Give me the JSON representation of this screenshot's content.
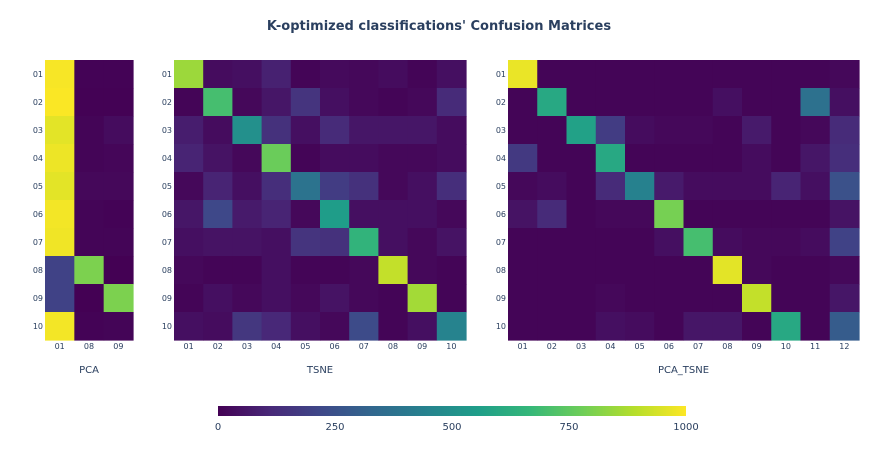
{
  "chart_data": {
    "type": "heatmap",
    "title": "K-optimized classifications' Confusion Matrices",
    "colorscale": "viridis",
    "zrange": [
      0,
      1000
    ],
    "colorbar": {
      "ticks": [
        "0",
        "250",
        "500",
        "750",
        "1000"
      ]
    },
    "panels": [
      {
        "name": "pca",
        "xlabel": "PCA",
        "x": [
          "01",
          "08",
          "09"
        ],
        "y": [
          "01",
          "02",
          "03",
          "04",
          "05",
          "06",
          "07",
          "08",
          "09",
          "10"
        ],
        "z": [
          [
            990,
            5,
            5
          ],
          [
            995,
            3,
            2
          ],
          [
            960,
            10,
            30
          ],
          [
            975,
            10,
            15
          ],
          [
            960,
            20,
            20
          ],
          [
            985,
            10,
            5
          ],
          [
            980,
            10,
            10
          ],
          [
            200,
            800,
            0
          ],
          [
            200,
            0,
            800
          ],
          [
            985,
            5,
            10
          ]
        ]
      },
      {
        "name": "tsne",
        "xlabel": "TSNE",
        "x": [
          "01",
          "02",
          "03",
          "04",
          "05",
          "06",
          "07",
          "08",
          "09",
          "10"
        ],
        "y": [
          "01",
          "02",
          "03",
          "04",
          "05",
          "06",
          "07",
          "08",
          "09",
          "10"
        ],
        "z": [
          [
            850,
            30,
            40,
            90,
            10,
            25,
            20,
            30,
            10,
            40
          ],
          [
            10,
            700,
            20,
            60,
            150,
            40,
            20,
            10,
            20,
            120
          ],
          [
            80,
            30,
            500,
            140,
            40,
            120,
            60,
            60,
            60,
            30
          ],
          [
            100,
            50,
            20,
            770,
            10,
            30,
            30,
            20,
            20,
            30
          ],
          [
            20,
            100,
            40,
            130,
            380,
            180,
            140,
            20,
            40,
            130
          ],
          [
            60,
            220,
            70,
            100,
            20,
            550,
            40,
            40,
            40,
            20
          ],
          [
            40,
            50,
            50,
            40,
            150,
            140,
            650,
            40,
            20,
            50
          ],
          [
            20,
            10,
            10,
            40,
            10,
            10,
            20,
            910,
            20,
            10
          ],
          [
            10,
            40,
            20,
            40,
            20,
            50,
            20,
            10,
            860,
            10
          ],
          [
            40,
            30,
            160,
            110,
            40,
            20,
            230,
            10,
            40,
            450
          ]
        ]
      },
      {
        "name": "pca_tsne",
        "xlabel": "PCA_TSNE",
        "x": [
          "01",
          "02",
          "03",
          "04",
          "05",
          "06",
          "07",
          "08",
          "09",
          "10",
          "11",
          "12"
        ],
        "y": [
          "01",
          "02",
          "03",
          "04",
          "05",
          "06",
          "07",
          "08",
          "09",
          "10"
        ],
        "z": [
          [
            970,
            10,
            10,
            10,
            10,
            10,
            10,
            10,
            10,
            10,
            10,
            20
          ],
          [
            10,
            600,
            10,
            10,
            10,
            10,
            10,
            40,
            10,
            10,
            370,
            40
          ],
          [
            10,
            10,
            570,
            180,
            30,
            20,
            20,
            10,
            70,
            10,
            20,
            120
          ],
          [
            170,
            10,
            10,
            600,
            10,
            10,
            10,
            10,
            30,
            10,
            60,
            130
          ],
          [
            20,
            30,
            10,
            120,
            440,
            70,
            30,
            30,
            30,
            100,
            40,
            250
          ],
          [
            50,
            120,
            10,
            20,
            20,
            790,
            10,
            10,
            10,
            10,
            10,
            50
          ],
          [
            10,
            10,
            10,
            10,
            10,
            40,
            700,
            30,
            20,
            20,
            30,
            200
          ],
          [
            10,
            10,
            10,
            10,
            10,
            10,
            10,
            960,
            20,
            10,
            10,
            20
          ],
          [
            10,
            10,
            10,
            20,
            10,
            10,
            10,
            10,
            910,
            10,
            10,
            60
          ],
          [
            10,
            10,
            10,
            40,
            30,
            10,
            60,
            60,
            10,
            600,
            10,
            290
          ]
        ]
      }
    ]
  }
}
